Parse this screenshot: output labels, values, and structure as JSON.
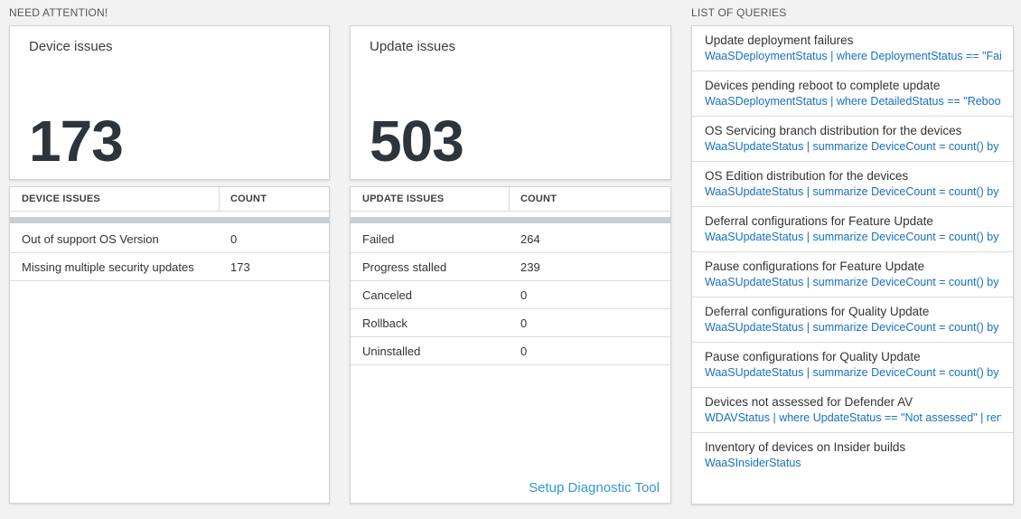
{
  "colors": {
    "accent-number": "#2e343c",
    "query-link": "#1670c0",
    "setup-link": "#3596d4"
  },
  "need_attention": {
    "header": "NEED ATTENTION!"
  },
  "device_card": {
    "title": "Device issues",
    "value": "173"
  },
  "update_card": {
    "title": "Update issues",
    "value": "503"
  },
  "device_table": {
    "headers": [
      "DEVICE ISSUES",
      "COUNT"
    ],
    "rows": [
      {
        "label": "Out of support OS Version",
        "count": "0"
      },
      {
        "label": "Missing multiple security updates",
        "count": "173"
      }
    ]
  },
  "update_table": {
    "headers": [
      "UPDATE ISSUES",
      "COUNT"
    ],
    "rows": [
      {
        "label": "Failed",
        "count": "264"
      },
      {
        "label": "Progress stalled",
        "count": "239"
      },
      {
        "label": "Canceled",
        "count": "0"
      },
      {
        "label": "Rollback",
        "count": "0"
      },
      {
        "label": "Uninstalled",
        "count": "0"
      }
    ],
    "footer_link": "Setup Diagnostic Tool"
  },
  "queries_panel": {
    "header": "LIST OF QUERIES",
    "items": [
      {
        "title": "Update deployment failures",
        "query": "WaaSDeploymentStatus | where DeploymentStatus == \"Failed\" |..."
      },
      {
        "title": "Devices pending reboot to complete update",
        "query": "WaaSDeploymentStatus | where DetailedStatus == \"Reboot pend..."
      },
      {
        "title": "OS Servicing branch distribution for the devices",
        "query": "WaaSUpdateStatus | summarize DeviceCount = count() by OSSer..."
      },
      {
        "title": "OS Edition distribution for the devices",
        "query": "WaaSUpdateStatus | summarize DeviceCount = count() by OSEdit..."
      },
      {
        "title": "Deferral configurations for Feature Update",
        "query": "WaaSUpdateStatus | summarize DeviceCount = count() by Featur..."
      },
      {
        "title": "Pause configurations for Feature Update",
        "query": "WaaSUpdateStatus | summarize DeviceCount = count() by Featur..."
      },
      {
        "title": "Deferral configurations for Quality Update",
        "query": "WaaSUpdateStatus | summarize DeviceCount = count() by Qualit..."
      },
      {
        "title": "Pause configurations for Quality Update",
        "query": "WaaSUpdateStatus | summarize DeviceCount = count() by Qualit..."
      },
      {
        "title": "Devices not assessed for Defender AV",
        "query": "WDAVStatus | where UpdateStatus == \"Not assessed\" | render ta..."
      },
      {
        "title": "Inventory of devices on Insider builds",
        "query": "WaaSInsiderStatus"
      }
    ]
  }
}
